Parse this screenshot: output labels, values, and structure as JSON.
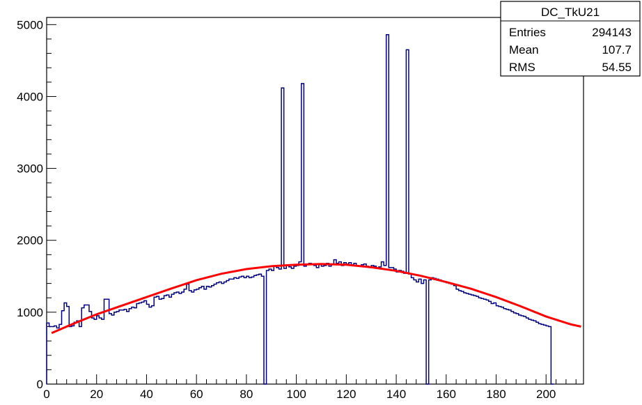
{
  "chart_data": {
    "type": "histogram",
    "bin_width": 1,
    "x_start": 0,
    "xlim": [
      0,
      215
    ],
    "ylim": [
      0,
      5100
    ],
    "x_ticks": [
      0,
      20,
      40,
      60,
      80,
      100,
      120,
      140,
      160,
      180,
      200
    ],
    "y_ticks": [
      0,
      1000,
      2000,
      3000,
      4000,
      5000
    ],
    "x_tick_labels": [
      "0",
      "20",
      "40",
      "60",
      "80",
      "100",
      "120",
      "140",
      "160",
      "180",
      "200"
    ],
    "y_tick_labels": [
      "0",
      "1000",
      "2000",
      "3000",
      "4000",
      "5000"
    ],
    "histogram_color": "#00007f",
    "fit_color": "#ff0000",
    "fit": {
      "type": "polynomial",
      "points": [
        [
          2,
          710
        ],
        [
          10,
          830
        ],
        [
          20,
          970
        ],
        [
          30,
          1090
        ],
        [
          40,
          1210
        ],
        [
          50,
          1330
        ],
        [
          60,
          1445
        ],
        [
          70,
          1535
        ],
        [
          80,
          1600
        ],
        [
          90,
          1640
        ],
        [
          100,
          1660
        ],
        [
          110,
          1670
        ],
        [
          120,
          1660
        ],
        [
          130,
          1625
        ],
        [
          140,
          1575
        ],
        [
          150,
          1505
        ],
        [
          160,
          1420
        ],
        [
          170,
          1325
        ],
        [
          180,
          1210
        ],
        [
          190,
          1080
        ],
        [
          200,
          940
        ],
        [
          210,
          830
        ],
        [
          214,
          800
        ]
      ]
    },
    "counts": [
      850,
      800,
      800,
      810,
      780,
      830,
      1020,
      1130,
      1080,
      800,
      810,
      860,
      880,
      800,
      1060,
      1100,
      1100,
      1010,
      920,
      900,
      950,
      920,
      900,
      1180,
      1180,
      980,
      960,
      1000,
      1010,
      1030,
      1030,
      1040,
      1010,
      1050,
      1070,
      1060,
      1120,
      1130,
      1140,
      1160,
      1110,
      1070,
      1090,
      1210,
      1220,
      1180,
      1190,
      1230,
      1240,
      1210,
      1250,
      1270,
      1280,
      1260,
      1280,
      1320,
      1390,
      1300,
      1280,
      1310,
      1320,
      1340,
      1360,
      1320,
      1360,
      1350,
      1370,
      1390,
      1410,
      1420,
      1400,
      1420,
      1440,
      1460,
      1460,
      1480,
      1470,
      1490,
      1500,
      1480,
      1500,
      1480,
      1490,
      1510,
      1520,
      1530,
      1500,
      0,
      1580,
      1600,
      1580,
      1640,
      1620,
      1600,
      4120,
      1610,
      1650,
      1630,
      1610,
      1640,
      1650,
      1700,
      4180,
      1640,
      1660,
      1680,
      1670,
      1650,
      1620,
      1660,
      1640,
      1650,
      1680,
      1640,
      1670,
      1730,
      1680,
      1700,
      1650,
      1690,
      1670,
      1690,
      1660,
      1680,
      1650,
      1640,
      1660,
      1670,
      1640,
      1620,
      1650,
      1640,
      1610,
      1630,
      1700,
      1650,
      4860,
      1620,
      1620,
      1600,
      1560,
      1580,
      1570,
      1540,
      4650,
      1530,
      1480,
      1450,
      1420,
      1460,
      1400,
      1450,
      0,
      1450,
      1480,
      1470,
      1460,
      1450,
      1430,
      1420,
      1410,
      1400,
      1390,
      1370,
      1320,
      1300,
      1290,
      1270,
      1260,
      1250,
      1240,
      1230,
      1220,
      1200,
      1190,
      1180,
      1170,
      1150,
      1120,
      1130,
      1090,
      1080,
      1070,
      1050,
      1040,
      1030,
      1010,
      990,
      980,
      960,
      950,
      940,
      920,
      900,
      890,
      880,
      860,
      840,
      830,
      820,
      810,
      800,
      0
    ]
  },
  "stats": {
    "title": "DC_TkU21",
    "rows": [
      {
        "label": "Entries",
        "value": "294143"
      },
      {
        "label": "Mean",
        "value": "107.7"
      },
      {
        "label": "RMS",
        "value": "54.55"
      }
    ]
  }
}
